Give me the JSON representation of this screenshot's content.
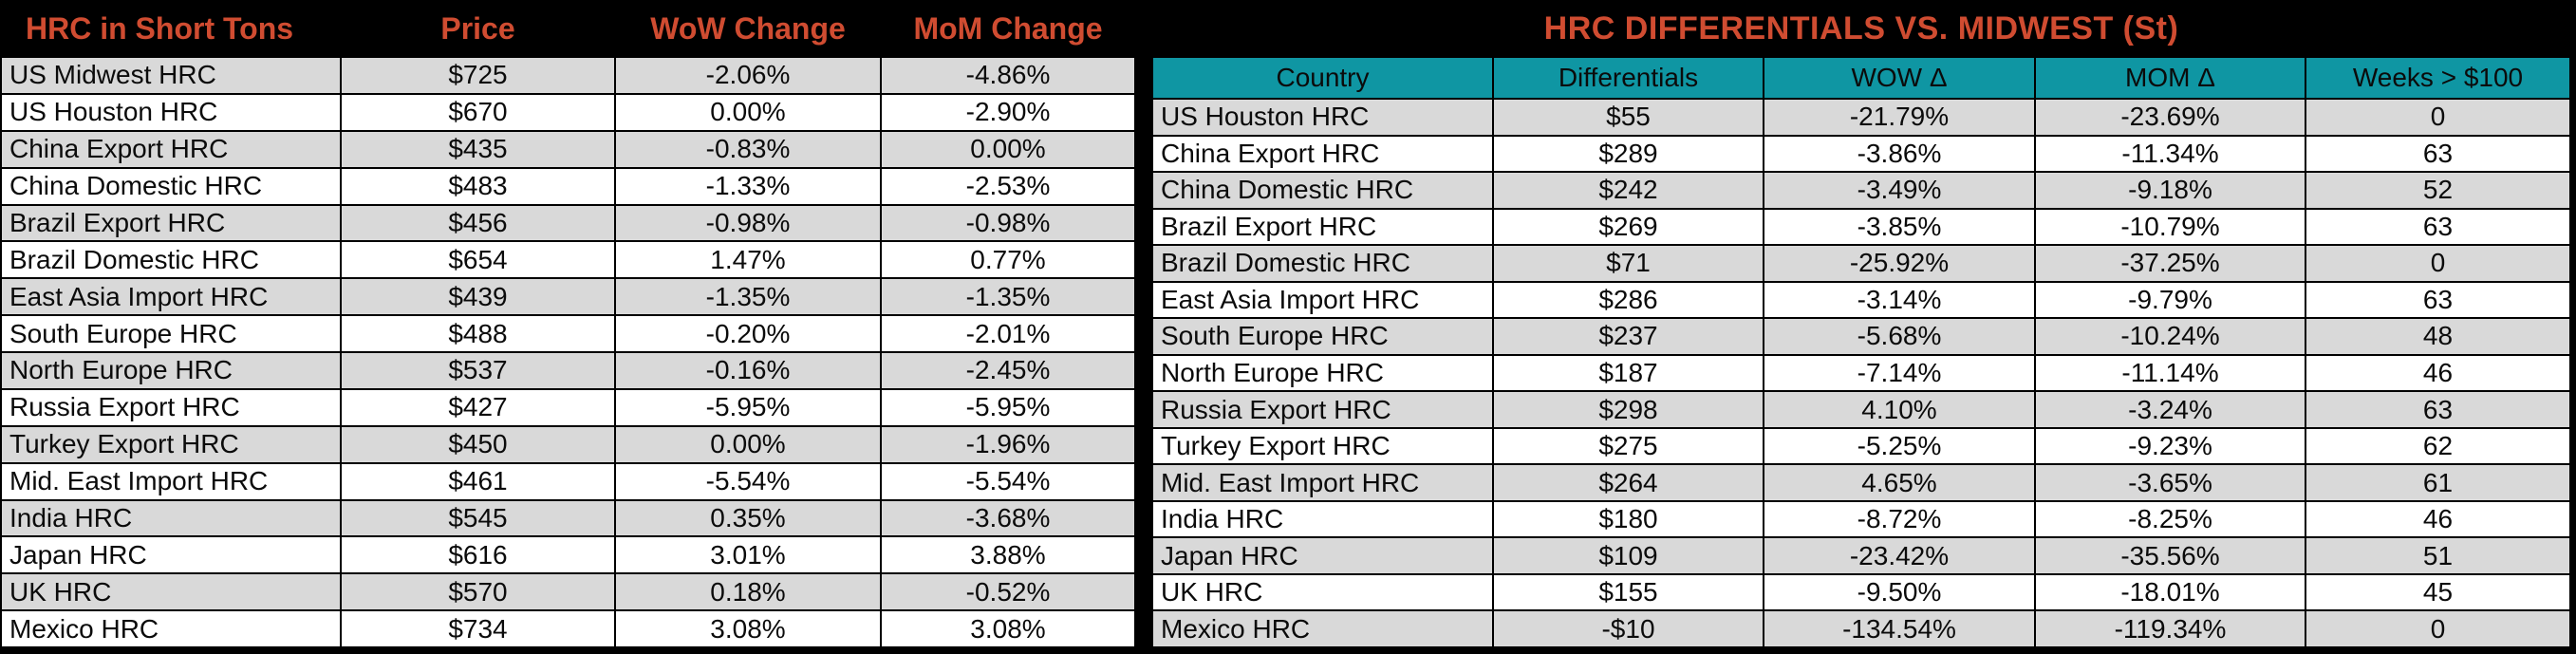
{
  "chart_data": [
    {
      "type": "table",
      "title": "HRC in Short Tons",
      "columns": [
        "HRC in Short Tons",
        "Price",
        "WoW Change",
        "MoM Change"
      ],
      "rows": [
        [
          "US Midwest HRC",
          "$725",
          "-2.06%",
          "-4.86%"
        ],
        [
          "US Houston HRC",
          "$670",
          "0.00%",
          "-2.90%"
        ],
        [
          "China Export HRC",
          "$435",
          "-0.83%",
          "0.00%"
        ],
        [
          "China Domestic HRC",
          "$483",
          "-1.33%",
          "-2.53%"
        ],
        [
          "Brazil Export HRC",
          "$456",
          "-0.98%",
          "-0.98%"
        ],
        [
          "Brazil Domestic HRC",
          "$654",
          "1.47%",
          "0.77%"
        ],
        [
          "East Asia Import HRC",
          "$439",
          "-1.35%",
          "-1.35%"
        ],
        [
          "South Europe HRC",
          "$488",
          "-0.20%",
          "-2.01%"
        ],
        [
          "North Europe HRC",
          "$537",
          "-0.16%",
          "-2.45%"
        ],
        [
          "Russia Export HRC",
          "$427",
          "-5.95%",
          "-5.95%"
        ],
        [
          "Turkey Export HRC",
          "$450",
          "0.00%",
          "-1.96%"
        ],
        [
          "Mid. East Import HRC",
          "$461",
          "-5.54%",
          "-5.54%"
        ],
        [
          "India HRC",
          "$545",
          "0.35%",
          "-3.68%"
        ],
        [
          "Japan HRC",
          "$616",
          "3.01%",
          "3.88%"
        ],
        [
          "UK HRC",
          "$570",
          "0.18%",
          "-0.52%"
        ],
        [
          "Mexico HRC",
          "$734",
          "3.08%",
          "3.08%"
        ]
      ]
    },
    {
      "type": "table",
      "title": "HRC DIFFERENTIALS VS. MIDWEST (St)",
      "columns": [
        "Country",
        "Differentials",
        "WOW Δ",
        "MOM Δ",
        "Weeks > $100"
      ],
      "rows": [
        [
          "US Houston HRC",
          "$55",
          "-21.79%",
          "-23.69%",
          "0"
        ],
        [
          "China Export HRC",
          "$289",
          "-3.86%",
          "-11.34%",
          "63"
        ],
        [
          "China Domestic HRC",
          "$242",
          "-3.49%",
          "-9.18%",
          "52"
        ],
        [
          "Brazil Export HRC",
          "$269",
          "-3.85%",
          "-10.79%",
          "63"
        ],
        [
          "Brazil Domestic HRC",
          "$71",
          "-25.92%",
          "-37.25%",
          "0"
        ],
        [
          "East Asia Import HRC",
          "$286",
          "-3.14%",
          "-9.79%",
          "63"
        ],
        [
          "South Europe HRC",
          "$237",
          "-5.68%",
          "-10.24%",
          "48"
        ],
        [
          "North Europe HRC",
          "$187",
          "-7.14%",
          "-11.14%",
          "46"
        ],
        [
          "Russia Export HRC",
          "$298",
          "4.10%",
          "-3.24%",
          "63"
        ],
        [
          "Turkey Export HRC",
          "$275",
          "-5.25%",
          "-9.23%",
          "62"
        ],
        [
          "Mid. East Import HRC",
          "$264",
          "4.65%",
          "-3.65%",
          "61"
        ],
        [
          "India HRC",
          "$180",
          "-8.72%",
          "-8.25%",
          "46"
        ],
        [
          "Japan HRC",
          "$109",
          "-23.42%",
          "-35.56%",
          "51"
        ],
        [
          "UK HRC",
          "$155",
          "-9.50%",
          "-18.01%",
          "45"
        ],
        [
          "Mexico HRC",
          "-$10",
          "-134.54%",
          "-119.34%",
          "0"
        ]
      ]
    }
  ],
  "colors": {
    "accent_orange": "#D04C31",
    "teal_header": "#0F96A3",
    "row_gray": "#D9D9D9",
    "row_white": "#FFFFFF",
    "background": "#000000",
    "text": "#0B0B0B"
  }
}
